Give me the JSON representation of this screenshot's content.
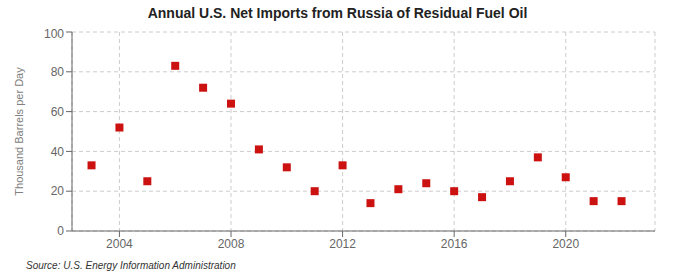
{
  "chart_data": {
    "type": "scatter",
    "title": "Annual U.S. Net Imports from Russia of Residual Fuel Oil",
    "y_label": "Thousand Barrels per Day",
    "annotations": [
      "Source: U.S. Energy Information Administration"
    ],
    "x": [
      2003,
      2004,
      2005,
      2006,
      2007,
      2008,
      2009,
      2010,
      2011,
      2012,
      2013,
      2014,
      2015,
      2016,
      2017,
      2018,
      2019,
      2020,
      2021,
      2022
    ],
    "values": [
      33,
      52,
      25,
      83,
      72,
      64,
      41,
      32,
      20,
      33,
      14,
      21,
      24,
      20,
      17,
      25,
      37,
      27,
      15,
      15
    ],
    "color": "#cc1111",
    "marker": "square",
    "xlim": [
      2002.3,
      2023.2
    ],
    "xticks": [
      2004,
      2008,
      2012,
      2016,
      2020
    ],
    "ylim": [
      0,
      100
    ],
    "yticks": [
      0,
      20,
      40,
      60,
      80,
      100
    ],
    "grid": true
  }
}
